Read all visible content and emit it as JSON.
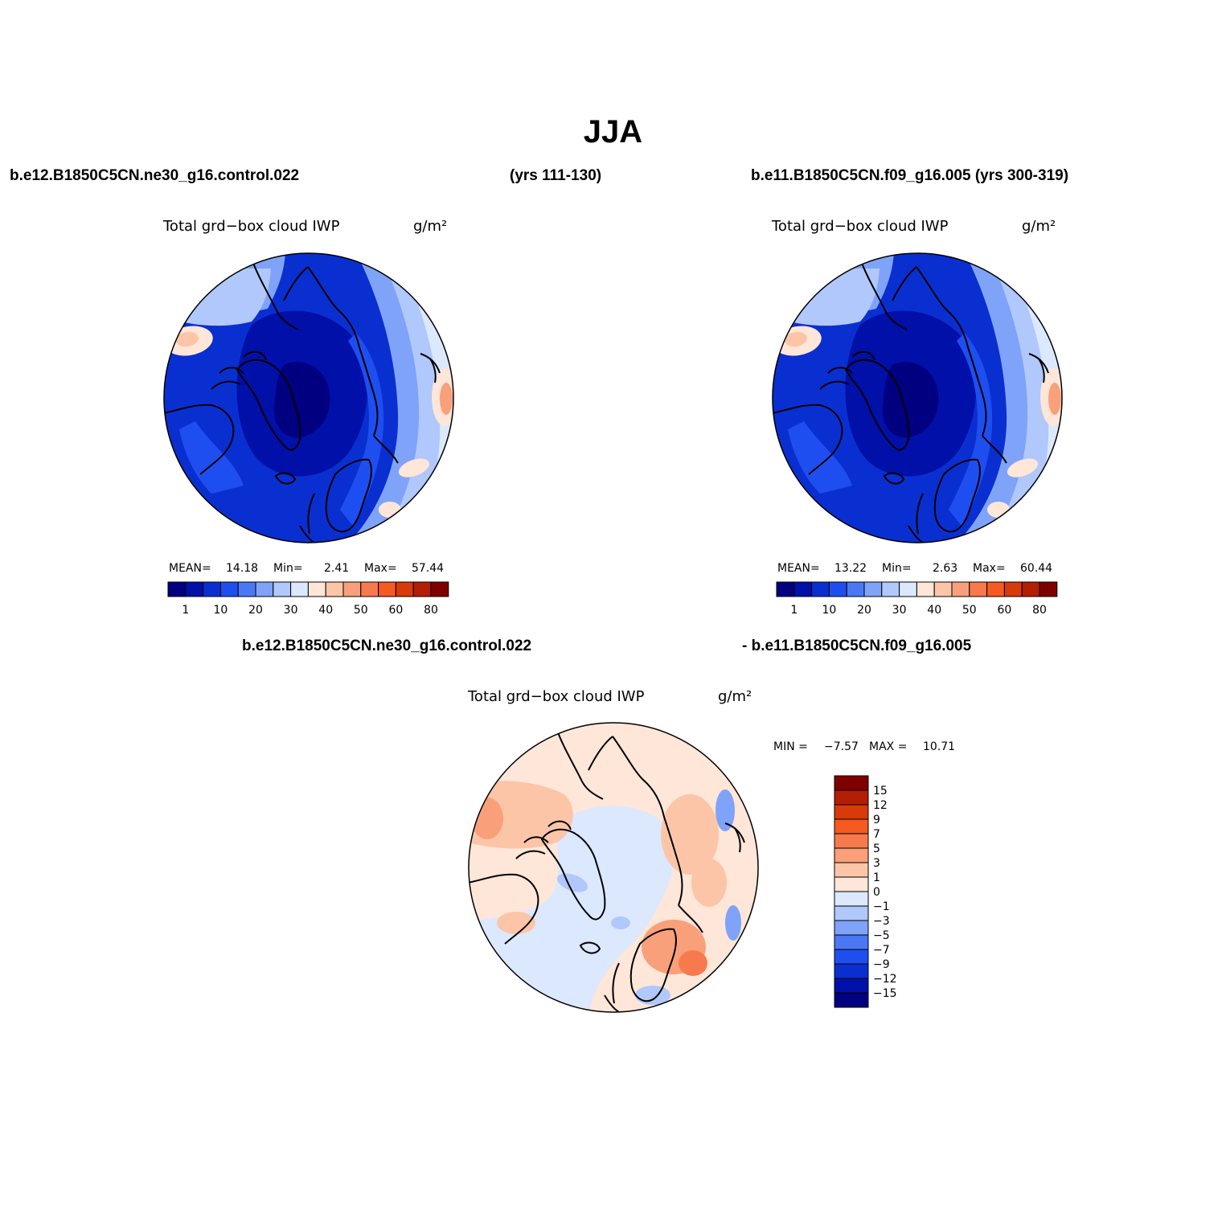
{
  "page": {
    "title": "JJA",
    "case1_label": "b.e12.B1850C5CN.ne30_g16.control.022",
    "case1_years": "(yrs 111-130)",
    "case2_label": "b.e11.B1850C5CN.f09_g16.005 (yrs 300-319)",
    "diff_label_a": "b.e12.B1850C5CN.ne30_g16.control.022",
    "diff_label_b": "- b.e11.B1850C5CN.f09_g16.005"
  },
  "colors": {
    "blues": [
      "#000080",
      "#0010a8",
      "#0a2fd0",
      "#1f4ef0",
      "#4a78f5",
      "#7fa3f8",
      "#b0c8fb",
      "#dbe8fe"
    ],
    "reds": [
      "#fee6d8",
      "#fcc5a8",
      "#f9a07a",
      "#f77a4e",
      "#f55a20",
      "#d83a0a",
      "#b31e04",
      "#800000"
    ],
    "coastline": "#000000"
  },
  "chart_data": [
    {
      "type": "heatmap",
      "projection": "north-polar-stereographic",
      "title": "Total grd−box cloud IWP",
      "units": "g/m²",
      "stats": {
        "mean_label": "MEAN=",
        "mean": "14.18",
        "min_label": "Min=",
        "min": "2.41",
        "max_label": "Max=",
        "max": "57.44"
      },
      "colorbar": {
        "orientation": "horizontal",
        "levels": [
          1,
          5,
          10,
          15,
          20,
          25,
          30,
          35,
          40,
          45,
          50,
          55,
          60,
          70,
          80
        ],
        "tick_labels": [
          "1",
          "10",
          "20",
          "30",
          "40",
          "50",
          "60",
          "80"
        ]
      }
    },
    {
      "type": "heatmap",
      "projection": "north-polar-stereographic",
      "title": "Total grd−box cloud IWP",
      "units": "g/m²",
      "stats": {
        "mean_label": "MEAN=",
        "mean": "13.22",
        "min_label": "Min=",
        "min": "2.63",
        "max_label": "Max=",
        "max": "60.44"
      },
      "colorbar": {
        "orientation": "horizontal",
        "levels": [
          1,
          5,
          10,
          15,
          20,
          25,
          30,
          35,
          40,
          45,
          50,
          55,
          60,
          70,
          80
        ],
        "tick_labels": [
          "1",
          "10",
          "20",
          "30",
          "40",
          "50",
          "60",
          "80"
        ]
      }
    },
    {
      "type": "heatmap",
      "projection": "north-polar-stereographic",
      "title": "Total grd−box cloud IWP",
      "units": "g/m²",
      "stats": {
        "min_label": "MIN =",
        "min": "−7.57",
        "max_label": "MAX =",
        "max": "10.71"
      },
      "colorbar": {
        "orientation": "vertical",
        "levels": [
          15,
          12,
          9,
          7,
          5,
          3,
          1,
          0,
          -1,
          -3,
          -5,
          -7,
          -9,
          -12,
          -15
        ],
        "tick_labels": [
          "15",
          "12",
          "9",
          "7",
          "5",
          "3",
          "1",
          "0",
          "−1",
          "−3",
          "−5",
          "−7",
          "−9",
          "−12",
          "−15"
        ]
      }
    }
  ]
}
